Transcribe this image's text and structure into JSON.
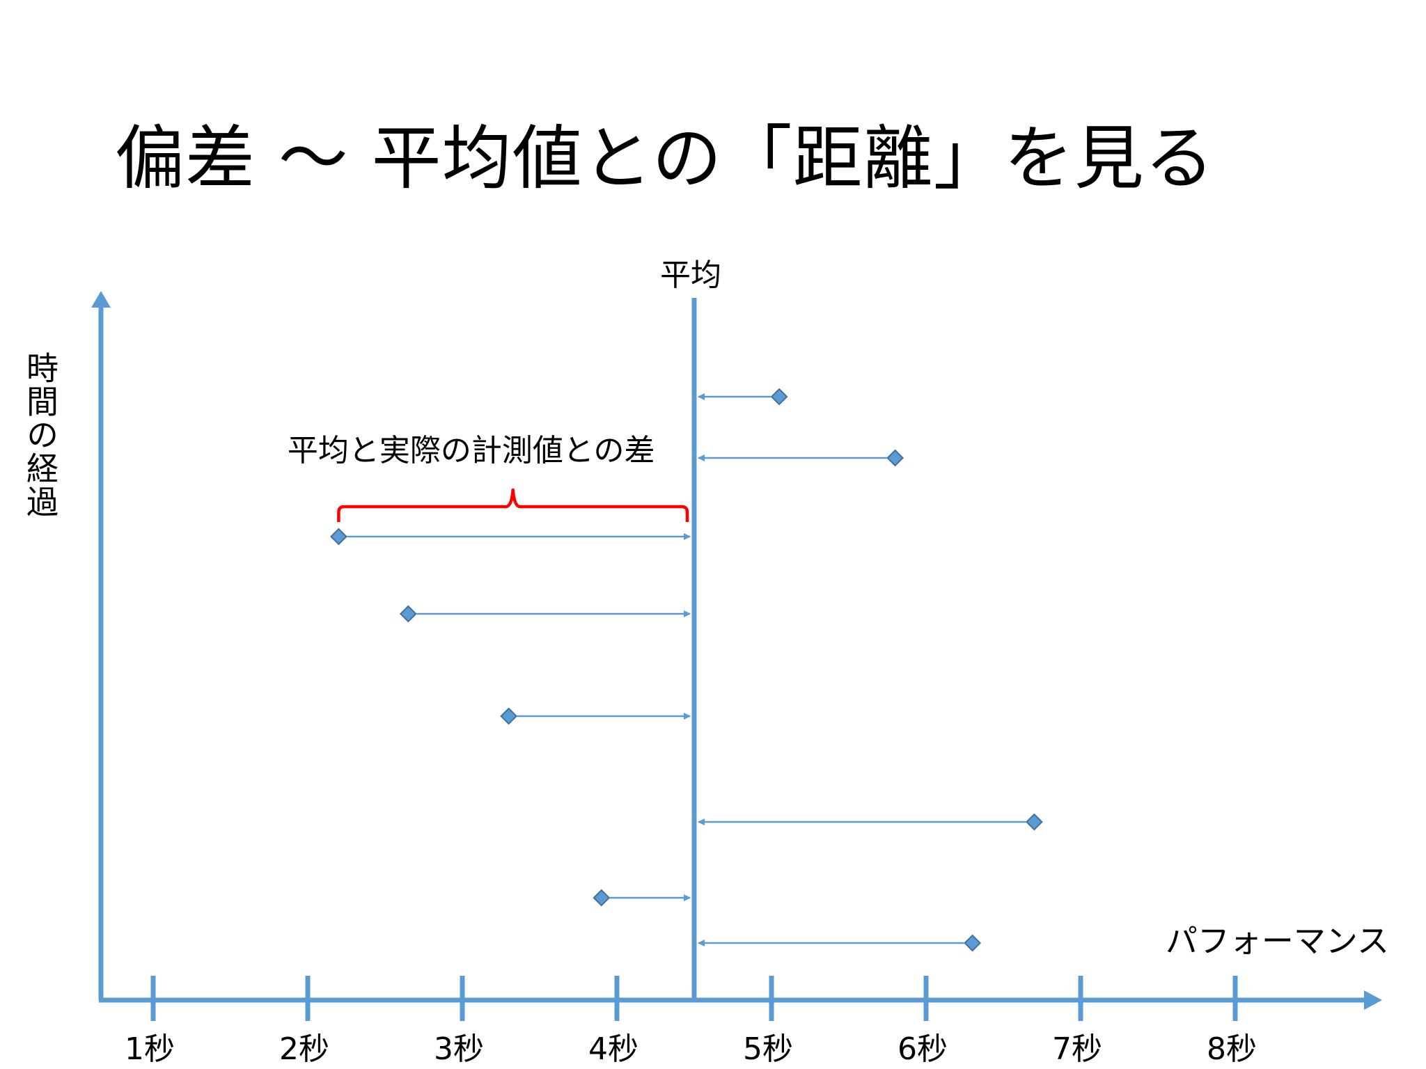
{
  "title": "偏差 ～ 平均値との「距離」を見る",
  "chart_data": {
    "type": "scatter",
    "xlabel": "パフォーマンス",
    "ylabel": "時間の経過",
    "x_tick_labels": [
      "1秒",
      "2秒",
      "3秒",
      "4秒",
      "5秒",
      "6秒",
      "7秒",
      "8秒"
    ],
    "x_ticks": [
      1,
      2,
      3,
      4,
      5,
      6,
      7,
      8
    ],
    "xlim": [
      0.4,
      8.9
    ],
    "mean": 4.5,
    "mean_label": "平均",
    "deviation_label": "平均と実際の計測値との差",
    "highlighted_index": 2,
    "points": [
      {
        "x": 5.05,
        "order": 1
      },
      {
        "x": 5.8,
        "order": 2
      },
      {
        "x": 2.2,
        "order": 3
      },
      {
        "x": 2.65,
        "order": 4
      },
      {
        "x": 3.3,
        "order": 5
      },
      {
        "x": 6.7,
        "order": 6
      },
      {
        "x": 3.9,
        "order": 7
      },
      {
        "x": 6.3,
        "order": 8
      }
    ],
    "colors": {
      "axis": "#5b9bd5",
      "marker": "#5b9bd5",
      "marker_stroke": "#41719c",
      "arrow": "#5b9bd5",
      "brace": "#ff0000"
    }
  }
}
